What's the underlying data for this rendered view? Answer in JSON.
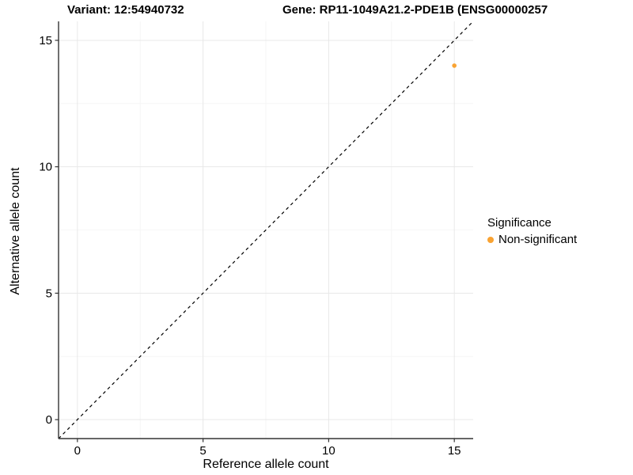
{
  "header": {
    "variant_title": "Variant: 12:54940732",
    "gene_title": "Gene: RP11-1049A21.2-PDE1B (ENSG00000257"
  },
  "chart_data": {
    "type": "scatter",
    "title": "Variant: 12:54940732  /  Gene: RP11-1049A21.2-PDE1B (ENSG00000257",
    "xlabel": "Reference allele count",
    "ylabel": "Alternative allele count",
    "xlim": [
      -0.75,
      15.75
    ],
    "ylim": [
      -0.75,
      15.75
    ],
    "xticks": [
      0,
      5,
      10,
      15
    ],
    "yticks": [
      0,
      5,
      10,
      15
    ],
    "grid": "major+minor",
    "legend_position": "right",
    "identity_line": {
      "show": true,
      "style": "dashed",
      "color": "#000000",
      "from": [
        -0.75,
        -0.75
      ],
      "to": [
        15.75,
        15.75
      ]
    },
    "series": [
      {
        "name": "Non-significant",
        "color": "#F9A332",
        "points": [
          {
            "x": 15,
            "y": 14
          }
        ]
      }
    ]
  },
  "legend": {
    "title": "Significance",
    "items": [
      {
        "label": "Non-significant",
        "color": "#F9A332"
      }
    ]
  },
  "colors": {
    "background": "#FFFFFF",
    "axis_line": "#333333",
    "tick_mark": "#333333",
    "grid_major": "#E8E8E8",
    "grid_minor": "#F4F4F4",
    "text": "#000000",
    "point": "#F9A332"
  }
}
